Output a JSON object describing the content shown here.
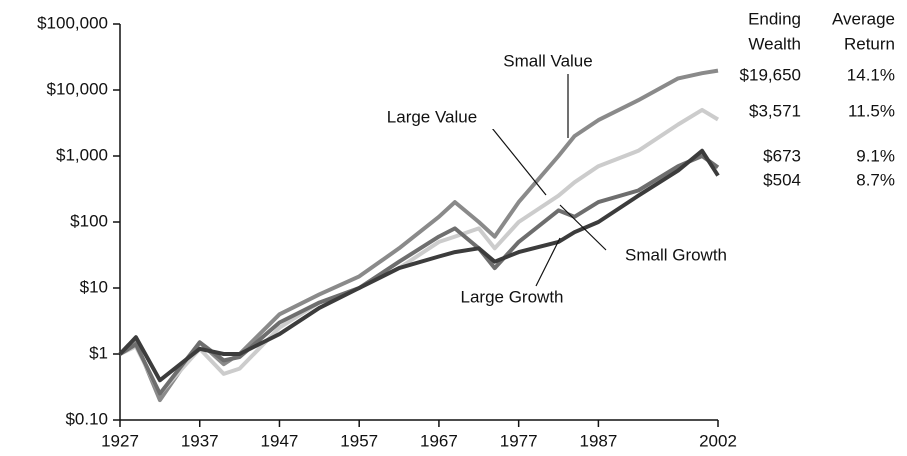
{
  "chart_data": {
    "type": "line",
    "x": [
      1927,
      1929,
      1932,
      1937,
      1940,
      1942,
      1947,
      1952,
      1957,
      1962,
      1967,
      1969,
      1972,
      1974,
      1977,
      1982,
      1984,
      1987,
      1992,
      1997,
      2000,
      2002
    ],
    "series": [
      {
        "name": "Small Value",
        "color": "#8a8a8a",
        "values": [
          1,
          1.5,
          0.2,
          1.5,
          0.7,
          1,
          4,
          8,
          15,
          40,
          120,
          200,
          100,
          60,
          200,
          1000,
          2000,
          3500,
          7000,
          15000,
          18000,
          19650
        ]
      },
      {
        "name": "Large Value",
        "color": "#cccccc",
        "values": [
          1,
          1.3,
          0.25,
          1.2,
          0.5,
          0.6,
          2.5,
          6,
          10,
          20,
          50,
          60,
          80,
          40,
          100,
          250,
          400,
          700,
          1200,
          3000,
          5000,
          3571
        ]
      },
      {
        "name": "Small Growth",
        "color": "#6e6e6e",
        "values": [
          1,
          1.4,
          0.25,
          1.5,
          0.8,
          0.9,
          3,
          6,
          10,
          25,
          60,
          80,
          40,
          20,
          50,
          150,
          120,
          200,
          300,
          700,
          1000,
          673
        ]
      },
      {
        "name": "Large Growth",
        "color": "#3c3c3c",
        "values": [
          1,
          1.8,
          0.4,
          1.2,
          1,
          1,
          2,
          5,
          10,
          20,
          30,
          35,
          40,
          25,
          35,
          50,
          70,
          100,
          250,
          600,
          1200,
          504
        ]
      }
    ],
    "log_scale": true,
    "xlim": [
      1927,
      2002
    ],
    "xticks": [
      1927,
      1937,
      1947,
      1957,
      1967,
      1977,
      1987,
      2002
    ],
    "ylim": [
      0.1,
      100000
    ],
    "yticks": [
      {
        "value": 0.1,
        "label": "$0.10"
      },
      {
        "value": 1,
        "label": "$1"
      },
      {
        "value": 10,
        "label": "$10"
      },
      {
        "value": 100,
        "label": "$100"
      },
      {
        "value": 1000,
        "label": "$1,000"
      },
      {
        "value": 10000,
        "label": "$10,000"
      },
      {
        "value": 100000,
        "label": "$100,000"
      }
    ],
    "summary_table": {
      "header_lines": [
        [
          "Ending",
          "Wealth"
        ],
        [
          "Average",
          "Return"
        ]
      ],
      "rows": [
        [
          "$19,650",
          "14.1%"
        ],
        [
          "$3,571",
          "11.5%"
        ],
        [
          "$673",
          "9.1%"
        ],
        [
          "$504",
          "8.7%"
        ]
      ]
    }
  }
}
